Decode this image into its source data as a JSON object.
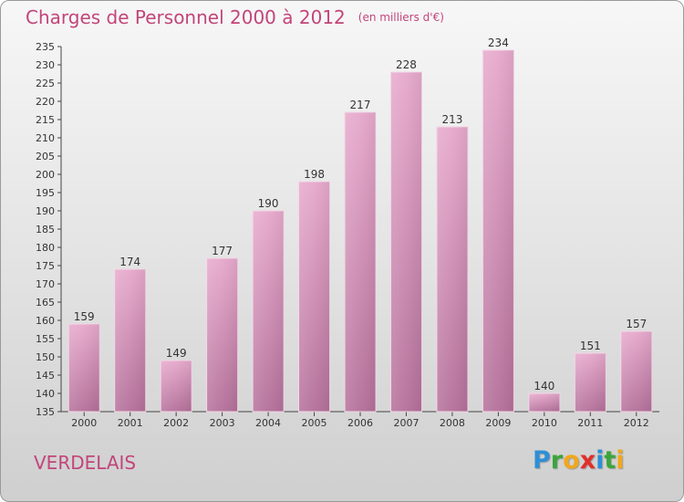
{
  "header": {
    "title": "Charges de Personnel 2000 à 2012",
    "subtitle": "(en milliers d'€)"
  },
  "footer": {
    "place": "VERDELAIS",
    "brand_letters": [
      {
        "char": "P",
        "color": "#2e8fd6"
      },
      {
        "char": "r",
        "color": "#3aa63a"
      },
      {
        "char": "o",
        "color": "#f0a81c"
      },
      {
        "char": "x",
        "color": "#e0302a"
      },
      {
        "char": "i",
        "color": "#2e8fd6"
      },
      {
        "char": "t",
        "color": "#3aa63a"
      },
      {
        "char": "i",
        "color": "#f0a81c"
      }
    ]
  },
  "colors": {
    "title": "#c2457a",
    "bar_light": "#e7a9cc",
    "bar_dark": "#b4709a",
    "axis": "#444444",
    "grid": "#cfcfcf"
  },
  "chart_data": {
    "type": "bar",
    "categories": [
      "2000",
      "2001",
      "2002",
      "2003",
      "2004",
      "2005",
      "2006",
      "2007",
      "2008",
      "2009",
      "2010",
      "2011",
      "2012"
    ],
    "values": [
      159,
      174,
      149,
      177,
      190,
      198,
      217,
      228,
      213,
      234,
      140,
      151,
      157
    ],
    "ylim": [
      135,
      235
    ],
    "ytick_step": 5,
    "grid": false,
    "data_labels": true
  }
}
